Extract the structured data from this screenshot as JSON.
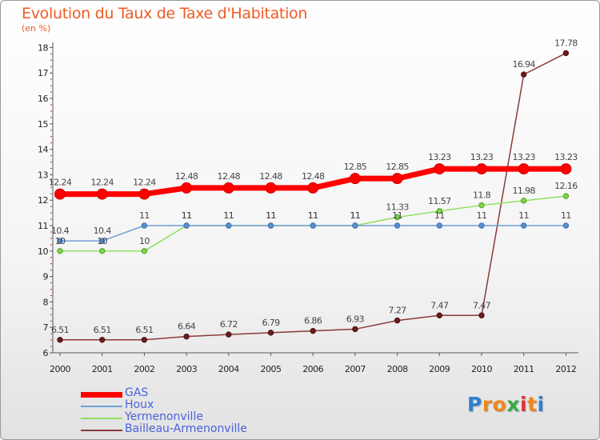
{
  "chart_data": {
    "type": "line",
    "title": "Evolution du Taux de Taxe d'Habitation",
    "subtitle": "(en %)",
    "x": [
      "2000",
      "2001",
      "2002",
      "2003",
      "2004",
      "2005",
      "2006",
      "2007",
      "2008",
      "2009",
      "2010",
      "2011",
      "2012"
    ],
    "ylim": [
      6,
      18
    ],
    "yticks": [
      "6",
      "7",
      "8",
      "9",
      "10",
      "11",
      "12",
      "13",
      "14",
      "15",
      "16",
      "17",
      "18"
    ],
    "grid": false,
    "legend_position": "bottom-left",
    "series": [
      {
        "name": "GAS",
        "color": "#ff0000",
        "values": [
          12.24,
          12.24,
          12.24,
          12.48,
          12.48,
          12.48,
          12.48,
          12.85,
          12.85,
          13.23,
          13.23,
          13.23,
          13.23
        ],
        "labels": [
          "12.24",
          "12.24",
          "12.24",
          "12.48",
          "12.48",
          "12.48",
          "12.48",
          "12.85",
          "12.85",
          "13.23",
          "13.23",
          "13.23",
          "13.23"
        ]
      },
      {
        "name": "Houx",
        "color": "#6fa0d8",
        "values": [
          10.4,
          10.4,
          11,
          11,
          11,
          11,
          11,
          11,
          11,
          11,
          11,
          11,
          11
        ],
        "labels": [
          "10.4",
          "10.4",
          "11",
          "11",
          "11",
          "11",
          "11",
          "11",
          "11",
          "11",
          "11",
          "11",
          "11"
        ]
      },
      {
        "name": "Yermenonville",
        "color": "#90e060",
        "values": [
          10,
          10,
          10,
          11,
          11,
          11,
          11,
          11,
          11.33,
          11.57,
          11.8,
          11.98,
          12.16
        ],
        "labels": [
          "10",
          "10",
          "10",
          "11",
          "11",
          "11",
          "11",
          "11",
          "11.33",
          "11.57",
          "11.8",
          "11.98",
          "12.16"
        ]
      },
      {
        "name": "Bailleau-Armenonville",
        "color": "#8b3a3a",
        "values": [
          6.51,
          6.51,
          6.51,
          6.64,
          6.72,
          6.79,
          6.86,
          6.93,
          7.27,
          7.47,
          7.47,
          16.94,
          17.78
        ],
        "labels": [
          "6.51",
          "6.51",
          "6.51",
          "6.64",
          "6.72",
          "6.79",
          "6.86",
          "6.93",
          "7.27",
          "7.47",
          "7.47",
          "16.94",
          "17.78"
        ]
      }
    ]
  },
  "logo": {
    "text": "Proxiti",
    "letters": [
      "P",
      "r",
      "o",
      "x",
      "i",
      "t",
      "i"
    ],
    "colors": [
      "#2f7fd0",
      "#f0861e",
      "#f0861e",
      "#3aa845",
      "#e0303a",
      "#f0861e",
      "#2f7fd0"
    ]
  }
}
